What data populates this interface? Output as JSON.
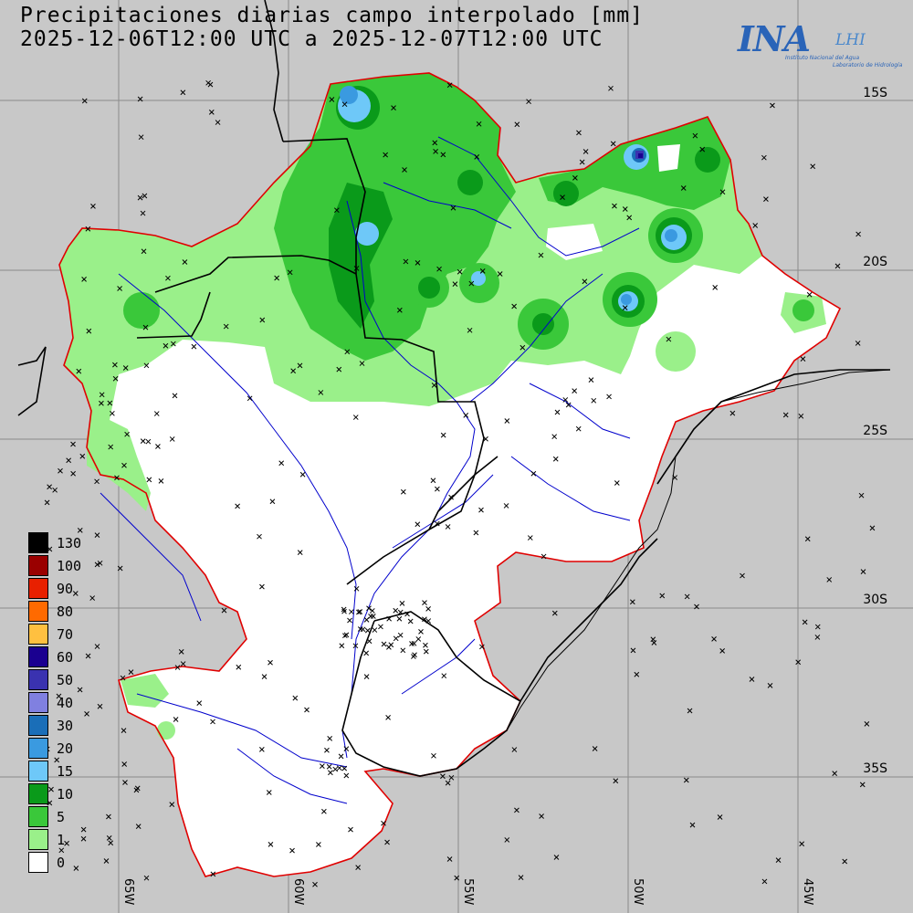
{
  "title": {
    "line1": "Precipitaciones diarias campo interpolado [mm]",
    "line2": "2025-12-06T12:00 UTC a 2025-12-07T12:00 UTC"
  },
  "logo": {
    "name": "INA",
    "lab": "LHI",
    "subtitle1": "Instituto Nacional del Agua",
    "subtitle2": "Laboratorio de Hidrología"
  },
  "latitude_labels": [
    "15S",
    "20S",
    "25S",
    "30S",
    "35S"
  ],
  "longitude_labels": [
    "65W",
    "60W",
    "55W",
    "50W",
    "45W"
  ],
  "legend": [
    {
      "label": "130",
      "color": "#000000"
    },
    {
      "label": "100",
      "color": "#9a0000"
    },
    {
      "label": "90",
      "color": "#e82000"
    },
    {
      "label": "80",
      "color": "#ff6a00"
    },
    {
      "label": "70",
      "color": "#ffc040"
    },
    {
      "label": "60",
      "color": "#1a0090"
    },
    {
      "label": "50",
      "color": "#3a32b0"
    },
    {
      "label": "40",
      "color": "#8080e0"
    },
    {
      "label": "30",
      "color": "#1a6eb8"
    },
    {
      "label": "20",
      "color": "#3a9ae0"
    },
    {
      "label": "15",
      "color": "#6ec8f8"
    },
    {
      "label": "10",
      "color": "#0a9a1a"
    },
    {
      "label": "5",
      "color": "#3ac83a"
    },
    {
      "label": "1",
      "color": "#9af08a"
    },
    {
      "label": "0",
      "color": "#ffffff"
    }
  ],
  "colors": {
    "background": "#c8c8c8",
    "basin_outline": "#e00000",
    "rivers": "#0000cc",
    "borders": "#000000",
    "grid": "#888888"
  }
}
